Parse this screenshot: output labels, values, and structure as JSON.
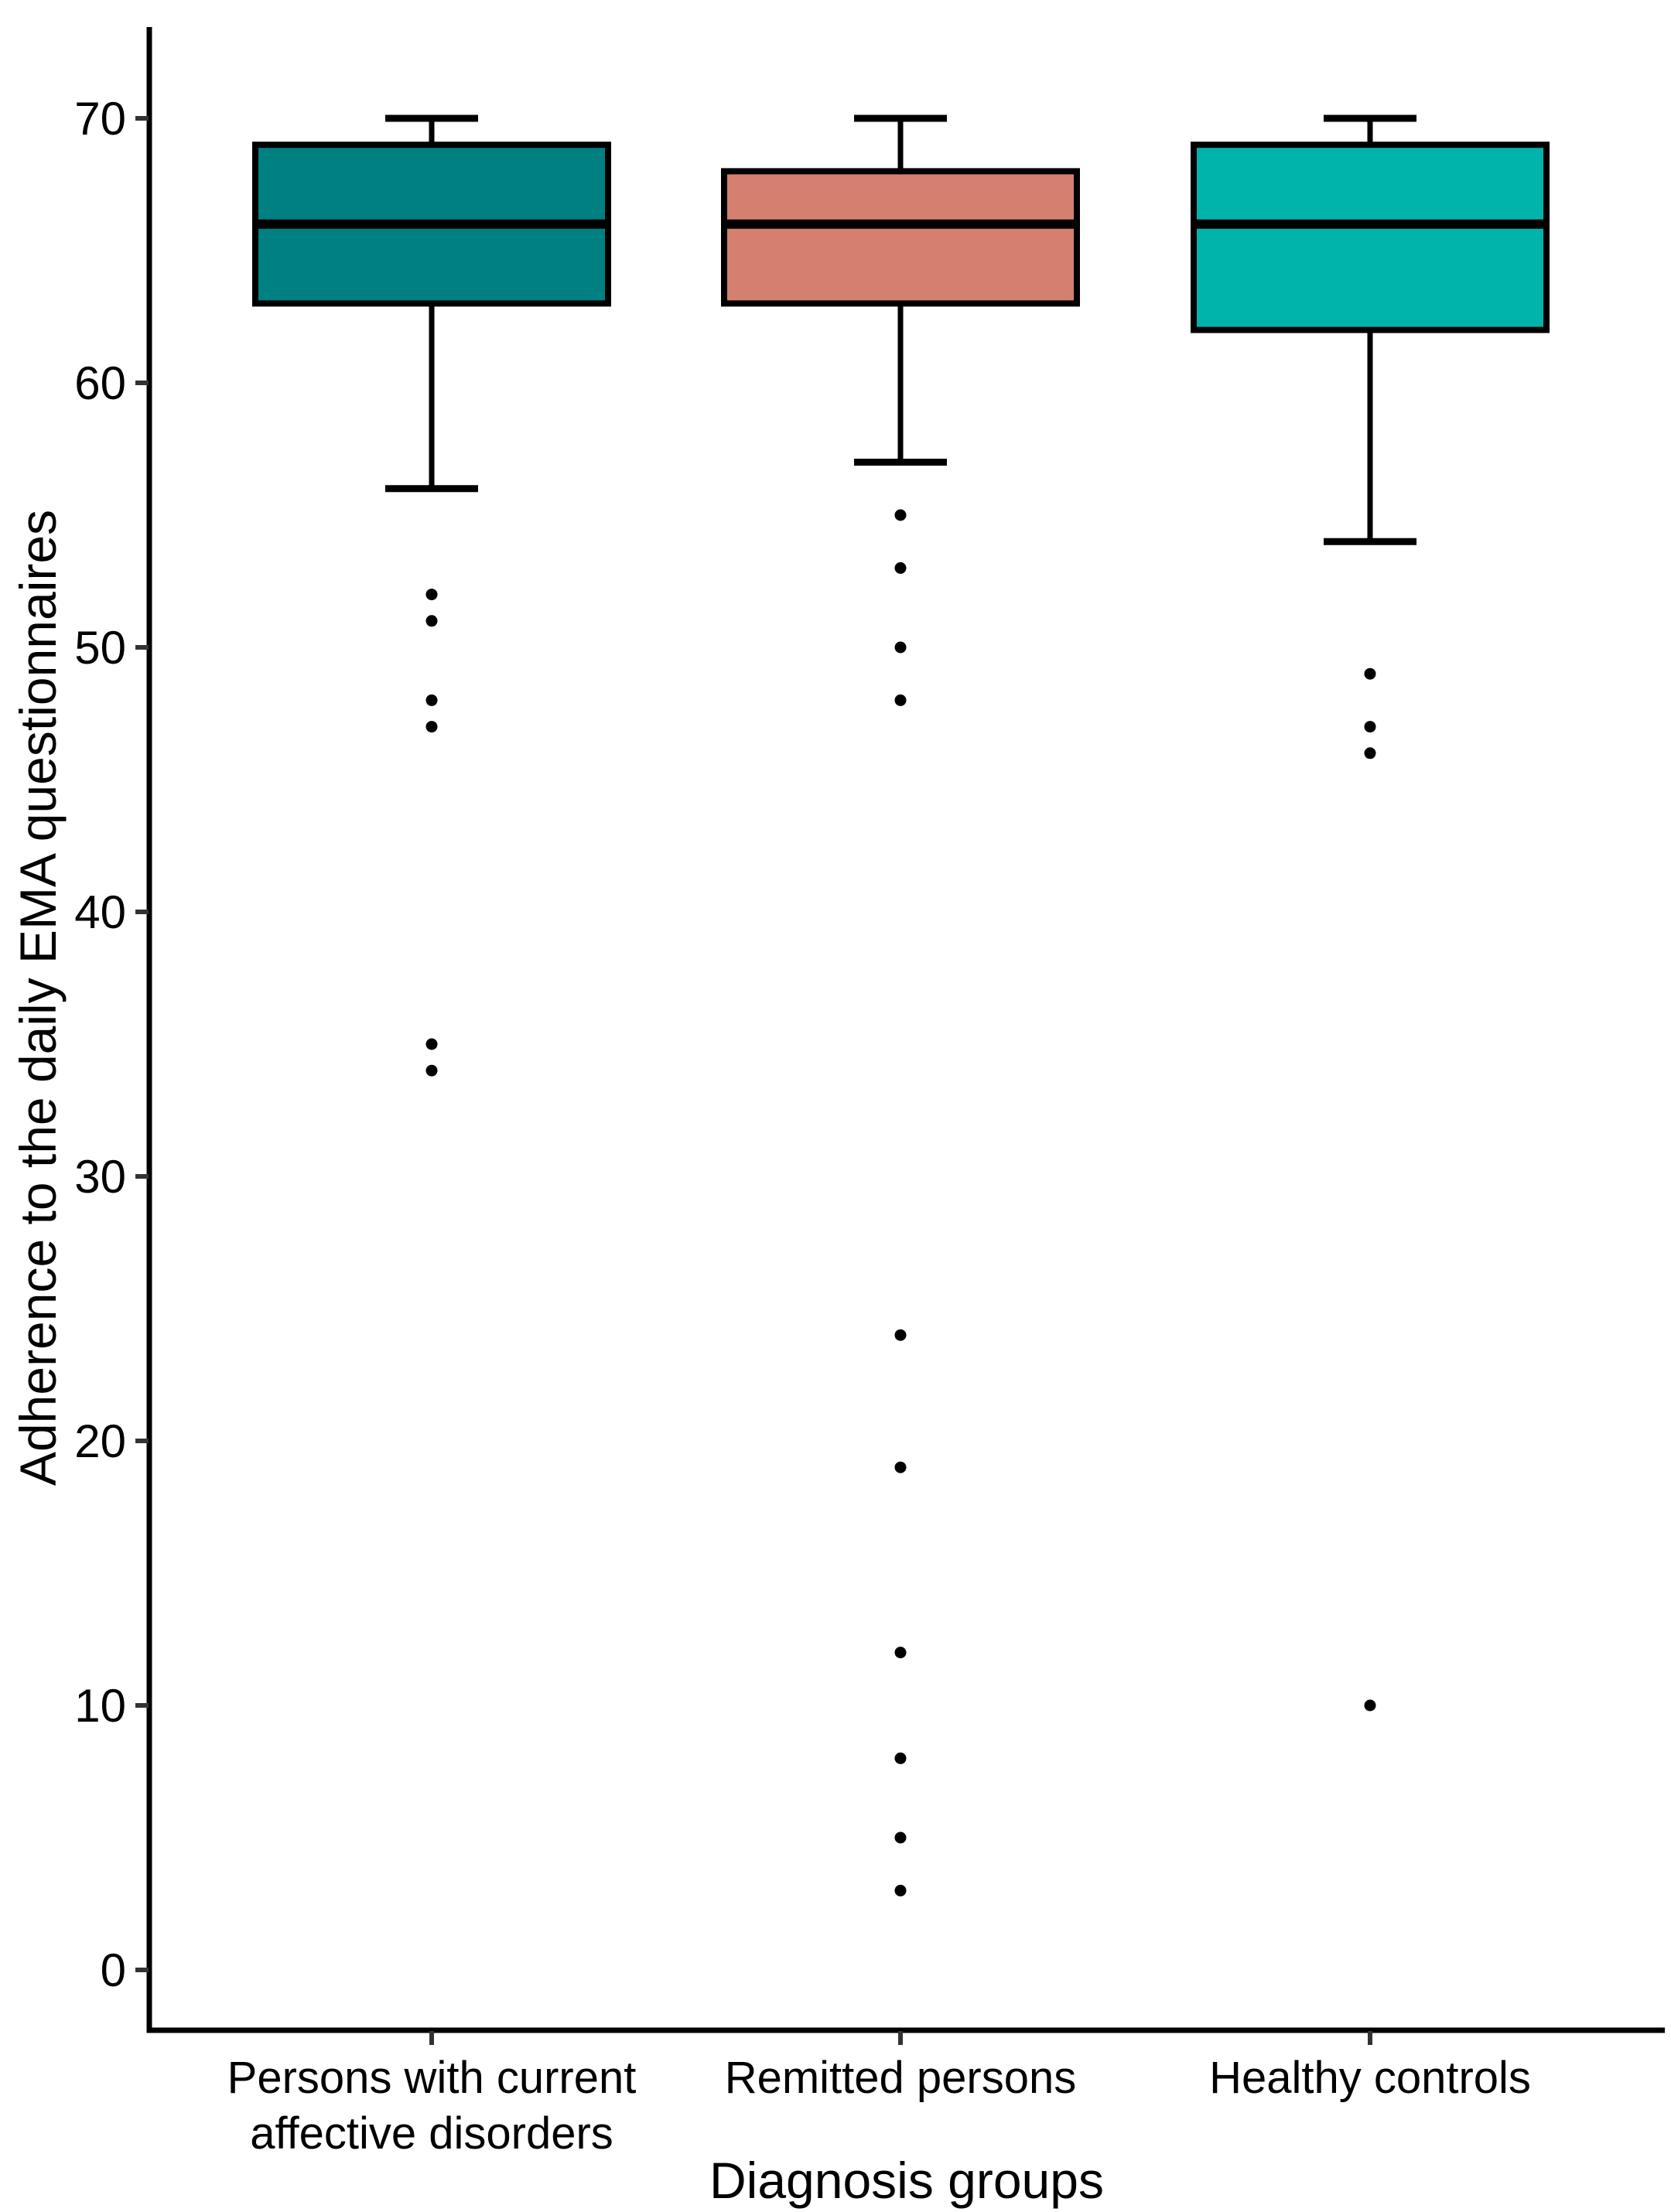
{
  "chart_data": {
    "type": "boxplot",
    "title": "",
    "xlabel": "Diagnosis groups",
    "ylabel": "Adherence to the daily EMA questionnaires",
    "ylim": [
      0,
      70
    ],
    "yticks": [
      0,
      10,
      20,
      30,
      40,
      50,
      60,
      70
    ],
    "grid": false,
    "legend_position": "none",
    "background": "#ffffff",
    "axis_color": "#000000",
    "tick_color": "#333333",
    "categories": [
      "Persons with current\naffective disorders",
      "Remitted persons",
      "Healthy controls"
    ],
    "series": [
      {
        "name": "Persons with current affective disorders",
        "color": "#008080",
        "whisker_high": 70,
        "q3": 69,
        "median": 66,
        "q1": 63,
        "whisker_low": 56,
        "outliers": [
          52,
          51,
          48,
          47,
          35,
          34
        ]
      },
      {
        "name": "Remitted persons",
        "color": "#d5806f",
        "whisker_high": 70,
        "q3": 68,
        "median": 66,
        "q1": 63,
        "whisker_low": 57,
        "outliers": [
          55,
          53,
          50,
          48,
          24,
          19,
          12,
          8,
          5,
          3
        ]
      },
      {
        "name": "Healthy controls",
        "color": "#00b4ac",
        "whisker_high": 70,
        "q3": 69,
        "median": 66,
        "q1": 62,
        "whisker_low": 54,
        "outliers": [
          49,
          47,
          46,
          10
        ]
      }
    ]
  }
}
